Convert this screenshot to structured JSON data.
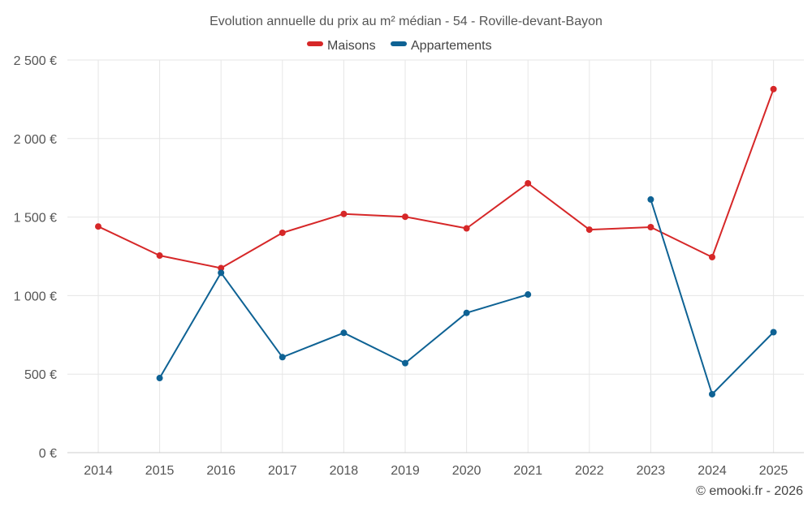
{
  "chart_data": {
    "type": "line",
    "title": "Evolution annuelle du prix au m² médian - 54 - Roville-devant-Bayon",
    "categories": [
      "2014",
      "2015",
      "2016",
      "2017",
      "2018",
      "2019",
      "2020",
      "2021",
      "2022",
      "2023",
      "2024",
      "2025"
    ],
    "ylim": [
      0,
      2500
    ],
    "yticks": [
      0,
      500,
      1000,
      1500,
      2000,
      2500
    ],
    "ytick_labels": [
      "0 €",
      "500 €",
      "1 000 €",
      "1 500 €",
      "2 000 €",
      "2 500 €"
    ],
    "grid": true,
    "legend_position": "top-center",
    "series": [
      {
        "name": "Maisons",
        "color": "#d62728",
        "values": [
          1440,
          1255,
          1175,
          1400,
          1520,
          1502,
          1428,
          1715,
          1420,
          1436,
          1245,
          2315
        ]
      },
      {
        "name": "Appartements",
        "color": "#0e6294",
        "values": [
          null,
          475,
          1145,
          608,
          763,
          570,
          890,
          1007,
          null,
          1612,
          372,
          767
        ]
      }
    ]
  },
  "credit": "© emooki.fr - 2026"
}
